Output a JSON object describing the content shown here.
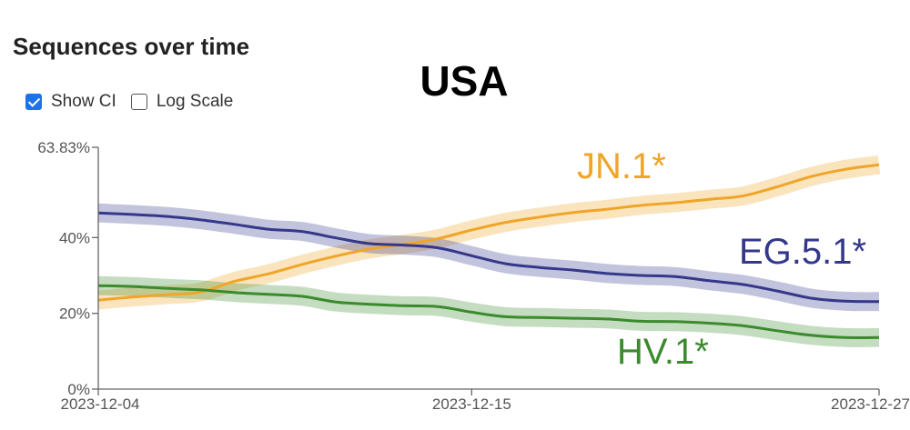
{
  "heading": "Sequences over time",
  "controls": {
    "show_ci": {
      "label": "Show CI",
      "checked": true
    },
    "log_scale": {
      "label": "Log Scale",
      "checked": false
    }
  },
  "chart_data": {
    "type": "line",
    "title": "USA",
    "xlabel": "",
    "ylabel": "",
    "x": [
      "2023-12-04",
      "2023-12-05",
      "2023-12-06",
      "2023-12-07",
      "2023-12-08",
      "2023-12-09",
      "2023-12-10",
      "2023-12-11",
      "2023-12-12",
      "2023-12-13",
      "2023-12-14",
      "2023-12-15",
      "2023-12-16",
      "2023-12-17",
      "2023-12-18",
      "2023-12-19",
      "2023-12-20",
      "2023-12-21",
      "2023-12-22",
      "2023-12-23",
      "2023-12-24",
      "2023-12-25",
      "2023-12-26",
      "2023-12-27"
    ],
    "x_ticks": [
      "2023-12-04",
      "2023-12-15",
      "2023-12-27"
    ],
    "y_ticks": [
      {
        "value": 0,
        "label": "0%"
      },
      {
        "value": 20,
        "label": "20%"
      },
      {
        "value": 40,
        "label": "40%"
      },
      {
        "value": 63.83,
        "label": "63.83%"
      }
    ],
    "ylim": [
      0,
      63.83
    ],
    "show_ci": true,
    "ci_halfwidth": 2.5,
    "grid": false,
    "series": [
      {
        "name": "JN.1*",
        "color": "#f0a528",
        "values": [
          23.5,
          24.3,
          24.9,
          25.6,
          28.4,
          30.4,
          32.9,
          35.1,
          37.0,
          38.2,
          39.7,
          42.0,
          44.0,
          45.4,
          46.6,
          47.5,
          48.5,
          49.2,
          50.1,
          51.0,
          53.4,
          56.1,
          58.0,
          59.2
        ]
      },
      {
        "name": "EG.5.1*",
        "color": "#35388a",
        "values": [
          46.5,
          46.1,
          45.6,
          44.7,
          43.5,
          42.2,
          41.6,
          39.9,
          38.4,
          38.0,
          37.3,
          35.2,
          33.1,
          32.1,
          31.4,
          30.5,
          30.0,
          29.7,
          28.6,
          27.6,
          25.9,
          24.0,
          23.2,
          23.1
        ]
      },
      {
        "name": "HV.1*",
        "color": "#3b8a2e",
        "values": [
          27.3,
          27.1,
          26.6,
          26.2,
          25.5,
          25.0,
          24.5,
          23.0,
          22.4,
          22.0,
          21.8,
          20.3,
          19.1,
          18.9,
          18.7,
          18.5,
          17.9,
          17.8,
          17.4,
          16.7,
          15.4,
          14.2,
          13.6,
          13.6
        ]
      }
    ]
  }
}
